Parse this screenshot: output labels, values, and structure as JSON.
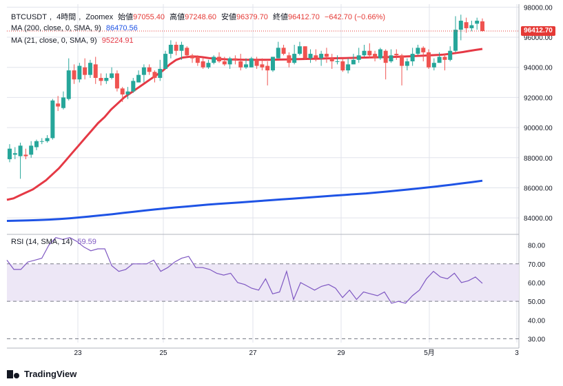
{
  "header": {
    "symbol": "BTCUSDT",
    "interval": "4時間",
    "exchange": "Zoomex",
    "open_label": "始値",
    "open": "97055.40",
    "high_label": "高値",
    "high": "97248.60",
    "low_label": "安値",
    "low": "96379.70",
    "close_label": "終値",
    "close": "96412.70",
    "change": "−642.70 (−0.66%)"
  },
  "ma200": {
    "label": "MA (200, close, 0, SMA, 9)",
    "value": "86470.56",
    "color": "#1e53e5"
  },
  "ma21": {
    "label": "MA (21, close, 0, SMA, 9)",
    "value": "95224.91",
    "color": "#e53945"
  },
  "rsi": {
    "label": "RSI (14, SMA, 14)",
    "value": "59.59",
    "color": "#7e57c2"
  },
  "price_tag": "96412.70",
  "brand": "TradingView",
  "colors": {
    "up": "#26a69a",
    "down": "#ef5350",
    "grid": "#e0e3eb",
    "rsi_band": "#ede7f6"
  },
  "chart_data": [
    {
      "type": "candlestick",
      "title": "BTCUSDT, 4時間, Zoomex",
      "x_tick_labels": [
        "23",
        "25",
        "27",
        "29",
        "5月",
        "3"
      ],
      "y_tick_labels": [
        "84000.00",
        "86000.00",
        "88000.00",
        "90000.00",
        "92000.00",
        "94000.00",
        "96000.00",
        "98000.00"
      ],
      "ylim": [
        83000,
        98200
      ],
      "candles": [
        [
          87900,
          88600,
          87700,
          88900
        ],
        [
          88200,
          88300,
          87900,
          88700
        ],
        [
          88100,
          88800,
          86600,
          89000
        ],
        [
          88200,
          88100,
          87900,
          88600
        ],
        [
          88200,
          88800,
          88000,
          89100
        ],
        [
          88700,
          89100,
          88500,
          89200
        ],
        [
          89100,
          89100,
          88900,
          89300
        ],
        [
          89100,
          89300,
          89000,
          89500
        ],
        [
          89300,
          91800,
          89200,
          91900
        ],
        [
          91600,
          91400,
          91100,
          92100
        ],
        [
          91300,
          92000,
          91200,
          92400
        ],
        [
          91900,
          93800,
          91800,
          94600
        ],
        [
          93800,
          93200,
          92900,
          94200
        ],
        [
          93200,
          94100,
          93000,
          94300
        ],
        [
          94000,
          93500,
          93200,
          94600
        ],
        [
          93500,
          94300,
          93300,
          94500
        ],
        [
          94200,
          93300,
          92900,
          94700
        ],
        [
          93300,
          93100,
          92800,
          93600
        ],
        [
          93100,
          93300,
          92900,
          93600
        ],
        [
          93300,
          93600,
          93200,
          94000
        ],
        [
          93600,
          92600,
          92400,
          93800
        ],
        [
          92600,
          92200,
          91700,
          92700
        ],
        [
          92200,
          92400,
          91900,
          92700
        ],
        [
          92400,
          93100,
          92300,
          93300
        ],
        [
          93000,
          93500,
          93000,
          93800
        ],
        [
          93500,
          94000,
          93000,
          94200
        ],
        [
          94000,
          93700,
          93500,
          94200
        ],
        [
          93700,
          93300,
          93000,
          93800
        ],
        [
          93300,
          93900,
          93100,
          94500
        ],
        [
          93900,
          94900,
          93900,
          95100
        ],
        [
          94900,
          95500,
          94600,
          95800
        ],
        [
          95500,
          95100,
          94800,
          95700
        ],
        [
          95100,
          95500,
          94500,
          95700
        ],
        [
          95300,
          94800,
          94700,
          95400
        ],
        [
          94800,
          94600,
          94300,
          94900
        ],
        [
          94700,
          94300,
          94100,
          94800
        ],
        [
          94400,
          94000,
          93900,
          94600
        ],
        [
          94000,
          94300,
          93900,
          94500
        ],
        [
          94300,
          94700,
          94200,
          94800
        ],
        [
          94700,
          94400,
          94300,
          95000
        ],
        [
          94400,
          94200,
          94100,
          94700
        ],
        [
          94200,
          94600,
          93900,
          94700
        ],
        [
          94600,
          94500,
          94200,
          94800
        ],
        [
          94400,
          94000,
          93800,
          94900
        ],
        [
          94000,
          94200,
          93900,
          94600
        ],
        [
          94000,
          94600,
          94000,
          94700
        ],
        [
          94500,
          94100,
          93900,
          94700
        ],
        [
          94200,
          94000,
          93800,
          94600
        ],
        [
          94100,
          93800,
          92800,
          94400
        ],
        [
          93800,
          94700,
          93700,
          94700
        ],
        [
          94600,
          95300,
          94600,
          95700
        ],
        [
          95300,
          94900,
          94800,
          95500
        ],
        [
          94800,
          94300,
          94000,
          95000
        ],
        [
          94300,
          94900,
          94200,
          95500
        ],
        [
          94900,
          95400,
          94800,
          95700
        ],
        [
          95400,
          94600,
          94500,
          95400
        ],
        [
          94600,
          94900,
          94300,
          95200
        ],
        [
          94800,
          94600,
          94400,
          95200
        ],
        [
          94600,
          94900,
          94100,
          95100
        ],
        [
          94900,
          94700,
          94300,
          95300
        ],
        [
          94600,
          94400,
          93900,
          94900
        ],
        [
          94400,
          94400,
          94200,
          94800
        ],
        [
          94400,
          93800,
          93700,
          94600
        ],
        [
          93800,
          94200,
          93600,
          94600
        ],
        [
          94200,
          94500,
          94200,
          94900
        ],
        [
          94500,
          94800,
          94300,
          95300
        ],
        [
          94800,
          95100,
          94700,
          95500
        ],
        [
          95100,
          94800,
          94600,
          95600
        ],
        [
          94900,
          94600,
          94400,
          95100
        ],
        [
          94600,
          95200,
          94500,
          95300
        ],
        [
          95100,
          94300,
          93200,
          95200
        ],
        [
          94400,
          94800,
          94300,
          95200
        ],
        [
          94900,
          94800,
          94500,
          95200
        ],
        [
          94800,
          94100,
          92800,
          94900
        ],
        [
          94100,
          94400,
          93800,
          94600
        ],
        [
          94400,
          94900,
          94100,
          95300
        ],
        [
          94900,
          95300,
          94800,
          95500
        ],
        [
          95300,
          95000,
          94400,
          95400
        ],
        [
          95000,
          94000,
          93900,
          95200
        ],
        [
          94000,
          94300,
          93800,
          94600
        ],
        [
          94300,
          94700,
          94300,
          95000
        ],
        [
          94700,
          94500,
          93800,
          94900
        ],
        [
          94500,
          95100,
          94400,
          95400
        ],
        [
          95100,
          96500,
          95000,
          97400
        ],
        [
          96500,
          97100,
          95800,
          97500
        ],
        [
          97000,
          96600,
          96300,
          97300
        ],
        [
          96600,
          96800,
          96400,
          97100
        ],
        [
          96900,
          97100,
          96500,
          97300
        ],
        [
          97055.4,
          96412.7,
          96379.7,
          97248.6
        ]
      ],
      "ma21": [
        85200,
        85300,
        85500,
        85700,
        85900,
        86200,
        86500,
        86900,
        87300,
        87800,
        88300,
        88800,
        89300,
        89800,
        90300,
        90700,
        91200,
        91600,
        92000,
        92300,
        92600,
        92900,
        93200,
        93500,
        93800,
        94200,
        94500,
        94650,
        94700,
        94720,
        94680,
        94620,
        94580,
        94550,
        94530,
        94520,
        94510,
        94500,
        94500,
        94500,
        94500,
        94510,
        94520,
        94530,
        94540,
        94550,
        94560,
        94570,
        94580,
        94590,
        94600,
        94610,
        94620,
        94630,
        94640,
        94650,
        94660,
        94670,
        94680,
        94690,
        94700,
        94720,
        94740,
        94760,
        94780,
        94800,
        94820,
        94850,
        94900,
        94960,
        95020,
        95090,
        95160,
        95224.91
      ],
      "ma200": [
        83800,
        83820,
        83840,
        83860,
        83890,
        83930,
        83980,
        84040,
        84110,
        84180,
        84250,
        84330,
        84410,
        84490,
        84560,
        84630,
        84700,
        84760,
        84820,
        84880,
        84930,
        84980,
        85030,
        85080,
        85130,
        85180,
        85230,
        85280,
        85330,
        85380,
        85430,
        85480,
        85530,
        85580,
        85630,
        85690,
        85750,
        85820,
        85890,
        85960,
        86040,
        86120,
        86200,
        86290,
        86380,
        86470.56
      ],
      "last_price": 96412.7
    },
    {
      "type": "line",
      "title": "RSI (14, SMA, 14)",
      "y_tick_labels": [
        "30.00",
        "40.00",
        "50.00",
        "60.00",
        "70.00",
        "80.00"
      ],
      "ylim": [
        28,
        85
      ],
      "band": [
        50,
        70
      ],
      "dashed_levels": [
        30,
        50,
        70
      ],
      "values": [
        72,
        67,
        67,
        71,
        72,
        73,
        80,
        84,
        83,
        84,
        82,
        79,
        77,
        78,
        78,
        69,
        66,
        67,
        70,
        70,
        70,
        72,
        66,
        68,
        71,
        73,
        74,
        68,
        68,
        67,
        65,
        64,
        65,
        60,
        59,
        57,
        56,
        62,
        54,
        55,
        66,
        51,
        60,
        58,
        56,
        58,
        59,
        57,
        52,
        56,
        51,
        55,
        54,
        53,
        55,
        49,
        50,
        49,
        53,
        56,
        62,
        66,
        63,
        62,
        65,
        60,
        61,
        63,
        59.59
      ]
    }
  ]
}
